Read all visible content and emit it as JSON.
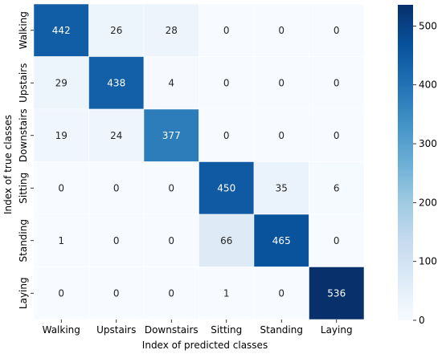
{
  "chart_data": {
    "type": "heatmap",
    "title": "",
    "xlabel": "Index of predicted classes",
    "ylabel": "Index of true classes",
    "x_categories": [
      "Walking",
      "Upstairs",
      "Downstairs",
      "Sitting",
      "Standing",
      "Laying"
    ],
    "y_categories": [
      "Walking",
      "Upstairs",
      "Downstairs",
      "Sitting",
      "Standing",
      "Laying"
    ],
    "values": [
      [
        442,
        26,
        28,
        0,
        0,
        0
      ],
      [
        29,
        438,
        4,
        0,
        0,
        0
      ],
      [
        19,
        24,
        377,
        0,
        0,
        0
      ],
      [
        0,
        0,
        0,
        450,
        35,
        6
      ],
      [
        1,
        0,
        0,
        66,
        465,
        0
      ],
      [
        0,
        0,
        0,
        1,
        0,
        536
      ]
    ],
    "colorbar": {
      "min": 0,
      "max": 536,
      "ticks": [
        0,
        100,
        200,
        300,
        400,
        500
      ],
      "colormap": "Blues",
      "colors": [
        "#f7fbff",
        "#deebf7",
        "#c6dbef",
        "#9ecae1",
        "#6baed6",
        "#4292c6",
        "#2171b5",
        "#08519c",
        "#08306b"
      ]
    },
    "cell_border_color": "#ffffff"
  }
}
